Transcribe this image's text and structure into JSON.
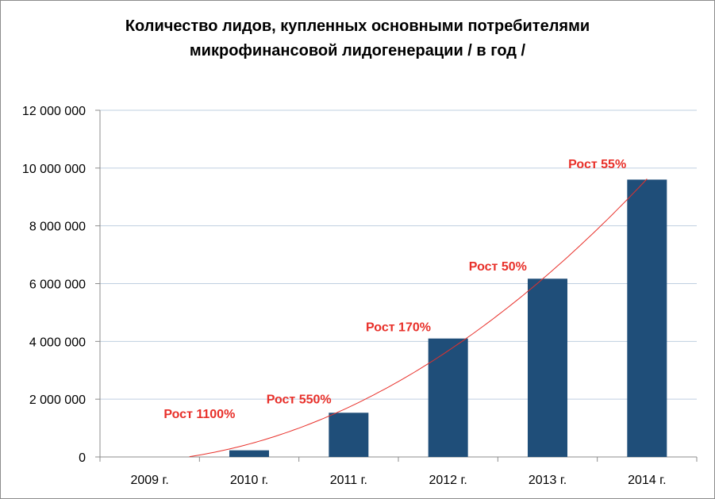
{
  "chart_data": {
    "type": "bar",
    "title_lines": [
      "Количество лидов, купленных основными потребителями",
      "микрофинансовой лидогенерации / в год  /"
    ],
    "categories": [
      "2009 г.",
      "2010 г.",
      "2011 г.",
      "2012 г.",
      "2013 г.",
      "2014 г."
    ],
    "values": [
      0,
      230000,
      1530000,
      4100000,
      6170000,
      9600000
    ],
    "ylim": [
      0,
      12000000
    ],
    "ytick_values": [
      0,
      2000000,
      4000000,
      6000000,
      8000000,
      10000000,
      12000000
    ],
    "ytick_labels": [
      "0",
      "2 000 000",
      "4 000 000",
      "6 000 000",
      "8 000 000",
      "10 000 000",
      "12 000 000"
    ],
    "grid": true,
    "legend": "none",
    "bar_color": "#1f4e79",
    "trendline": {
      "type": "polynomial",
      "color": "#e8302a"
    },
    "annotations": [
      {
        "category": "2009 г.",
        "text": "Рост 1100%",
        "value": 1350000
      },
      {
        "category": "2010 г.",
        "text": "Рост 550%",
        "value": 1850000
      },
      {
        "category": "2011 г.",
        "text": "Рост 170%",
        "value": 4350000
      },
      {
        "category": "2012 г.",
        "text": "Рост 50%",
        "value": 6450000
      },
      {
        "category": "2013 г.",
        "text": "Рост 55%",
        "value": 10000000
      }
    ],
    "annotation_color": "#e8302a"
  }
}
